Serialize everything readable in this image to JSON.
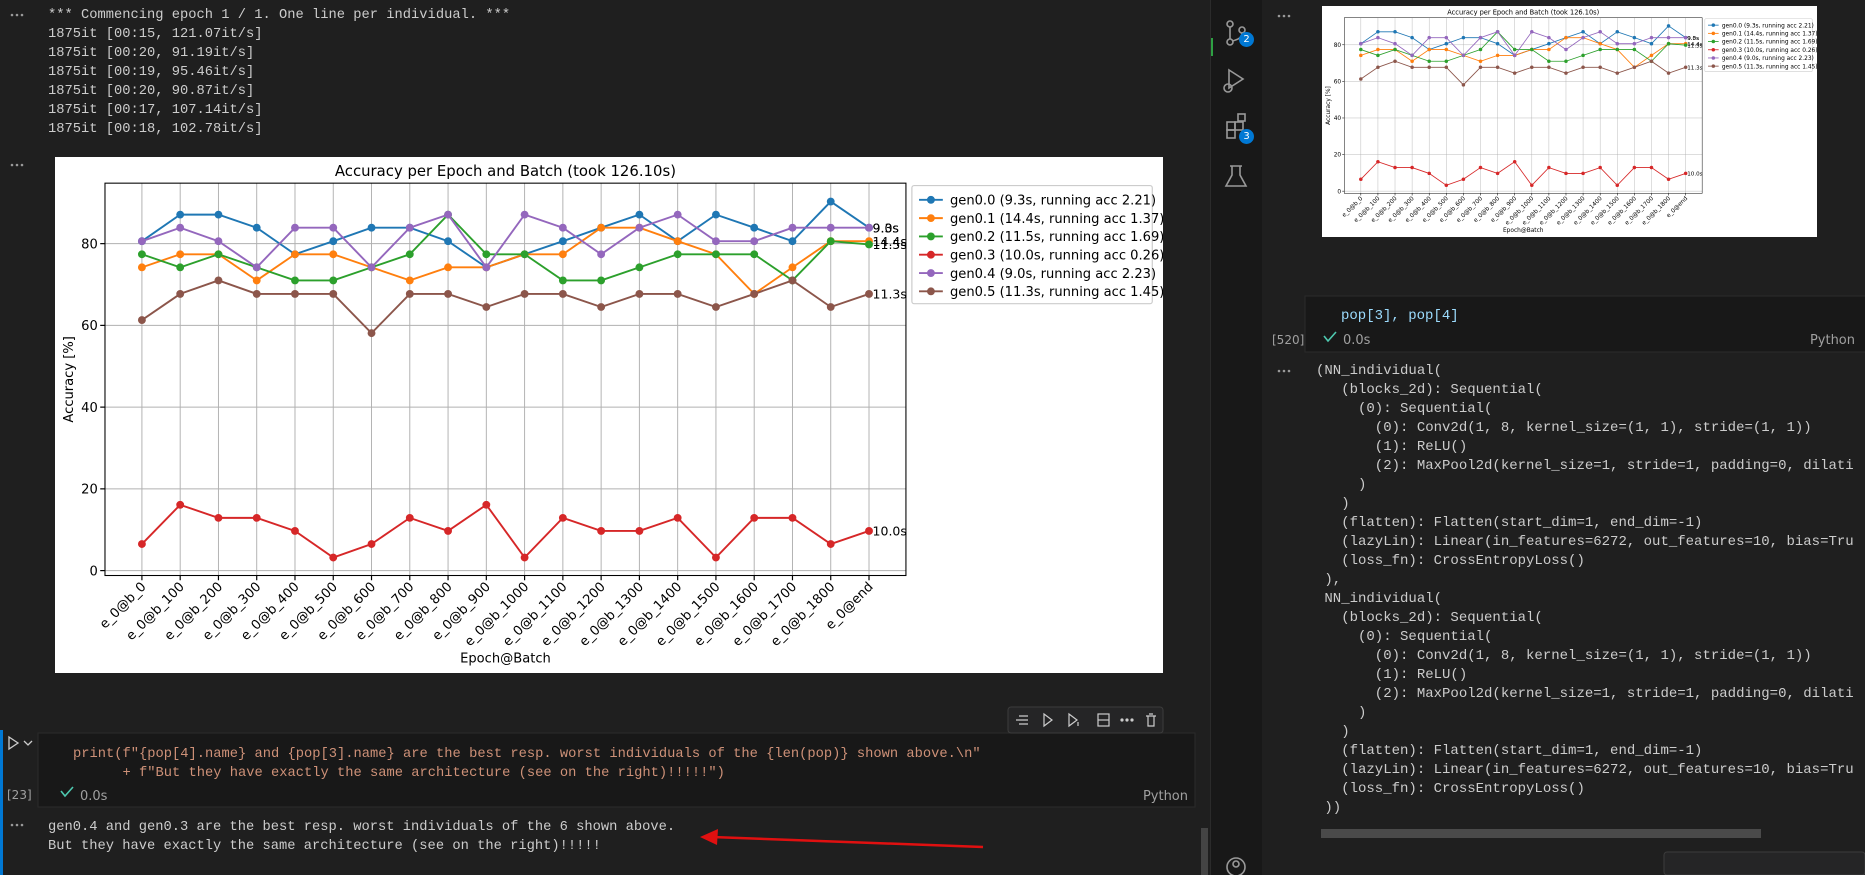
{
  "epoch_output": [
    "*** Commencing epoch 1 / 1. One line per individual. ***",
    "1875it [00:15, 121.07it/s]",
    "1875it [00:20, 91.19it/s]",
    "1875it [00:19, 95.46it/s]",
    "1875it [00:20, 90.87it/s]",
    "1875it [00:17, 107.14it/s]",
    "1875it [00:18, 102.78it/s]"
  ],
  "chart_data": {
    "type": "line",
    "title": "Accuracy per Epoch and Batch (took 126.10s)",
    "x_label": "Epoch@Batch",
    "y_label": "Accuracy [%]",
    "categories": [
      "e_0@b_0",
      "e_0@b_100",
      "e_0@b_200",
      "e_0@b_300",
      "e_0@b_400",
      "e_0@b_500",
      "e_0@b_600",
      "e_0@b_700",
      "e_0@b_800",
      "e_0@b_900",
      "e_0@b_1000",
      "e_0@b_1100",
      "e_0@b_1200",
      "e_0@b_1300",
      "e_0@b_1400",
      "e_0@b_1500",
      "e_0@b_1600",
      "e_0@b_1700",
      "e_0@b_1800",
      "e_0@end"
    ],
    "series": [
      {
        "name": "gen0.0 (9.3s, running acc 2.21)",
        "color": "#1f77b4",
        "annotation": "9.3s",
        "values": [
          80.6,
          87.1,
          87.1,
          83.9,
          77.4,
          80.6,
          83.9,
          83.9,
          80.6,
          74.2,
          77.4,
          80.6,
          83.9,
          87.1,
          80.6,
          87.1,
          83.9,
          80.6,
          90.3,
          83.9
        ]
      },
      {
        "name": "gen0.1 (14.4s, running acc 1.37)",
        "color": "#ff7f0e",
        "annotation": "14.4s",
        "values": [
          74.2,
          77.4,
          77.4,
          71.0,
          77.4,
          77.4,
          74.2,
          71.0,
          74.2,
          74.2,
          77.4,
          77.4,
          83.9,
          83.9,
          80.6,
          77.4,
          67.7,
          74.2,
          80.6,
          80.6
        ]
      },
      {
        "name": "gen0.2 (11.5s, running acc 1.69)",
        "color": "#2ca02c",
        "annotation": "11.5s",
        "values": [
          77.4,
          74.2,
          77.4,
          74.2,
          71.0,
          71.0,
          74.2,
          77.4,
          87.1,
          77.4,
          77.4,
          71.0,
          71.0,
          74.2,
          77.4,
          77.4,
          77.4,
          71.0,
          80.6,
          79.8
        ]
      },
      {
        "name": "gen0.3 (10.0s, running acc 0.26)",
        "color": "#d62728",
        "annotation": "10.0s",
        "values": [
          6.5,
          16.1,
          12.9,
          12.9,
          9.7,
          3.2,
          6.5,
          12.9,
          9.7,
          16.1,
          3.2,
          12.9,
          9.7,
          9.7,
          12.9,
          3.2,
          12.9,
          12.9,
          6.5,
          9.7
        ]
      },
      {
        "name": "gen0.4 (9.0s, running acc 2.23)",
        "color": "#9467bd",
        "annotation": "9.0s",
        "values": [
          80.6,
          83.9,
          80.6,
          74.2,
          83.9,
          83.9,
          74.2,
          83.9,
          87.1,
          74.2,
          87.1,
          83.9,
          77.4,
          83.9,
          87.1,
          80.6,
          80.6,
          83.9,
          83.9,
          83.9
        ]
      },
      {
        "name": "gen0.5 (11.3s, running acc 1.45)",
        "color": "#8c564b",
        "annotation": "11.3s",
        "values": [
          61.3,
          67.7,
          71.0,
          67.7,
          67.7,
          67.7,
          58.1,
          67.7,
          67.7,
          64.5,
          67.7,
          67.7,
          64.5,
          67.7,
          67.7,
          64.5,
          67.7,
          71.0,
          64.5,
          67.7
        ]
      }
    ],
    "ylim": [
      -1.2,
      94.8
    ],
    "yticks": [
      0,
      20,
      40,
      60,
      80
    ],
    "grid": true,
    "legend": "outside upper right"
  },
  "code_cell": {
    "lines": [
      "print(f\"{pop[4].name} and {pop[3].name} are the best resp. worst individuals of the {len(pop)} shown above.\\n\"",
      "      + f\"But they have exactly the same architecture (see on the right)!!!!!\")"
    ],
    "exec_count": "[23]",
    "time": "0.0s",
    "language": "Python"
  },
  "print_output": [
    "gen0.4 and gen0.3 are the best resp. worst individuals of the 6 shown above.",
    "But they have exactly the same architecture (see on the right)!!!!!"
  ],
  "activity_badges": [
    2,
    3
  ],
  "right_cell": {
    "code": "pop[3], pop[4]",
    "exec_count": "[520]",
    "time": "0.0s",
    "language": "Python",
    "output": [
      "(NN_individual(",
      "   (blocks_2d): Sequential(",
      "     (0): Sequential(",
      "       (0): Conv2d(1, 8, kernel_size=(1, 1), stride=(1, 1))",
      "       (1): ReLU()",
      "       (2): MaxPool2d(kernel_size=1, stride=1, padding=0, dilati",
      "     )",
      "   )",
      "   (flatten): Flatten(start_dim=1, end_dim=-1)",
      "   (lazyLin): Linear(in_features=6272, out_features=10, bias=Tru",
      "   (loss_fn): CrossEntropyLoss()",
      " ),",
      " NN_individual(",
      "   (blocks_2d): Sequential(",
      "     (0): Sequential(",
      "       (0): Conv2d(1, 8, kernel_size=(1, 1), stride=(1, 1))",
      "       (1): ReLU()",
      "       (2): MaxPool2d(kernel_size=1, stride=1, padding=0, dilati",
      "     )",
      "   )",
      "   (flatten): Flatten(start_dim=1, end_dim=-1)",
      "   (lazyLin): Linear(in_features=6272, out_features=10, bias=Tru",
      "   (loss_fn): CrossEntropyLoss()",
      " ))"
    ]
  }
}
